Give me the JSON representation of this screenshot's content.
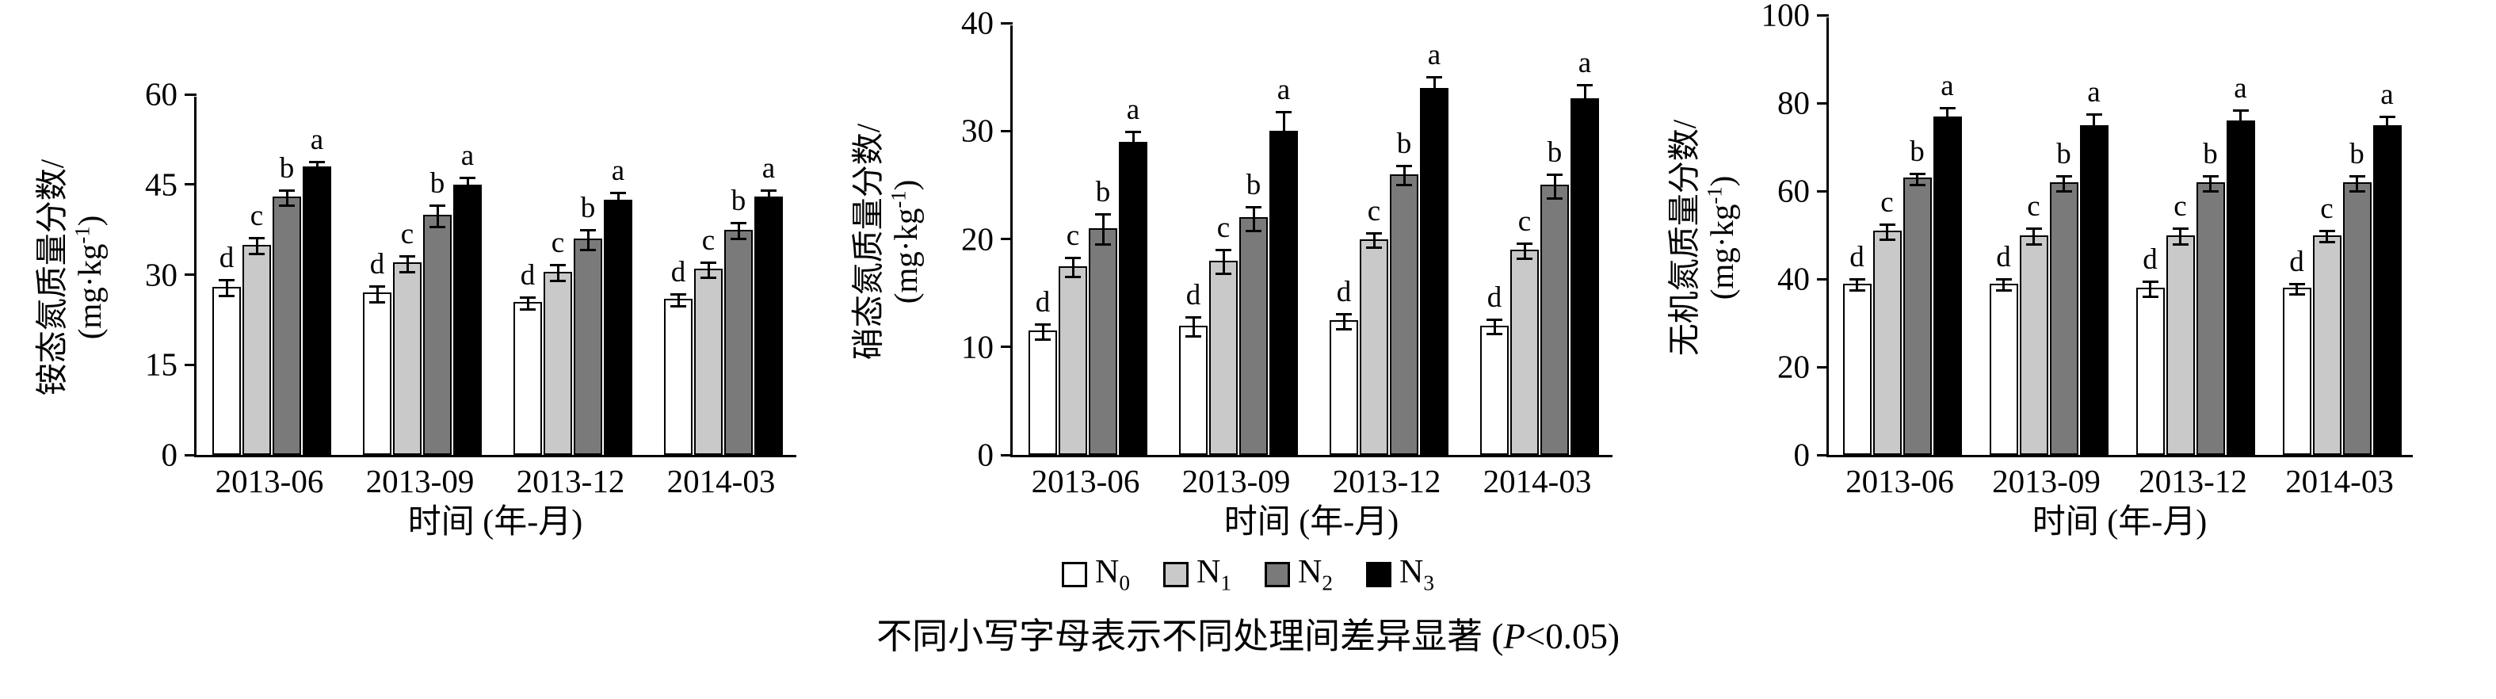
{
  "footnote": {
    "pre": "不同小写字母表示不同处理间差异显著 (",
    "italic": "P",
    "post": "<0.05)"
  },
  "legend": {
    "position": "bottom",
    "items": [
      {
        "label": "N0",
        "label_base": "N",
        "label_sub": "0",
        "color": "#ffffff"
      },
      {
        "label": "N1",
        "label_base": "N",
        "label_sub": "1",
        "color": "#c9c9c9"
      },
      {
        "label": "N2",
        "label_base": "N",
        "label_sub": "2",
        "color": "#7a7a7a"
      },
      {
        "label": "N3",
        "label_base": "N",
        "label_sub": "3",
        "color": "#000000"
      }
    ]
  },
  "chart_data": [
    {
      "type": "bar",
      "title": "",
      "ylabel": "铵态氮质量分数/(mg·kg⁻¹)",
      "ylabel_line1": "铵态氮质量分数/",
      "ylabel_unit_pre": "(mg·kg",
      "ylabel_unit_sup": "-1",
      "ylabel_unit_post": ")",
      "xlabel": "时间 (年-月)",
      "categories": [
        "2013-06",
        "2013-09",
        "2013-12",
        "2014-03"
      ],
      "ylim": [
        0,
        60
      ],
      "yticks": [
        0,
        15,
        30,
        45,
        60
      ],
      "grid": false,
      "series": [
        {
          "name": "N0",
          "values": [
            28,
            27,
            25.5,
            26
          ],
          "errors": [
            1.5,
            1.5,
            1.2,
            1.2
          ],
          "letters": [
            "d",
            "d",
            "d",
            "d"
          ]
        },
        {
          "name": "N1",
          "values": [
            35,
            32,
            30.5,
            31
          ],
          "errors": [
            1.5,
            1.5,
            1.5,
            1.5
          ],
          "letters": [
            "c",
            "c",
            "c",
            "c"
          ]
        },
        {
          "name": "N2",
          "values": [
            43,
            40,
            36,
            37.5
          ],
          "errors": [
            1.5,
            2,
            1.8,
            1.5
          ],
          "letters": [
            "b",
            "b",
            "b",
            "b"
          ]
        },
        {
          "name": "N3",
          "values": [
            48,
            45,
            42.5,
            43
          ],
          "errors": [
            1.2,
            1.5,
            1.5,
            1.5
          ],
          "letters": [
            "a",
            "a",
            "a",
            "a"
          ]
        }
      ]
    },
    {
      "type": "bar",
      "title": "",
      "ylabel": "硝态氮质量分数/(mg·kg⁻¹)",
      "ylabel_line1": "硝态氮质量分数/",
      "ylabel_unit_pre": "(mg·kg",
      "ylabel_unit_sup": "-1",
      "ylabel_unit_post": ")",
      "xlabel": "时间 (年-月)",
      "categories": [
        "2013-06",
        "2013-09",
        "2013-12",
        "2014-03"
      ],
      "ylim": [
        0,
        40
      ],
      "yticks": [
        0,
        10,
        20,
        30,
        40
      ],
      "grid": false,
      "series": [
        {
          "name": "N0",
          "values": [
            11.5,
            12,
            12.5,
            12
          ],
          "errors": [
            0.8,
            1,
            0.8,
            0.8
          ],
          "letters": [
            "d",
            "d",
            "d",
            "d"
          ]
        },
        {
          "name": "N1",
          "values": [
            17.5,
            18,
            20,
            19
          ],
          "errors": [
            1,
            1.2,
            0.8,
            0.8
          ],
          "letters": [
            "c",
            "c",
            "c",
            "c"
          ]
        },
        {
          "name": "N2",
          "values": [
            21,
            22,
            26,
            25
          ],
          "errors": [
            1.5,
            1.2,
            1,
            1.2
          ],
          "letters": [
            "b",
            "b",
            "b",
            "b"
          ]
        },
        {
          "name": "N3",
          "values": [
            29,
            30,
            34,
            33
          ],
          "errors": [
            1.2,
            2,
            1.2,
            1.5
          ],
          "letters": [
            "a",
            "a",
            "a",
            "a"
          ]
        }
      ]
    },
    {
      "type": "bar",
      "title": "",
      "ylabel": "无机氮质量分数/(mg·kg⁻¹)",
      "ylabel_line1": "无机氮质量分数/",
      "ylabel_unit_pre": "(mg·kg",
      "ylabel_unit_sup": "-1",
      "ylabel_unit_post": ")",
      "xlabel": "时间 (年-月)",
      "categories": [
        "2013-06",
        "2013-09",
        "2013-12",
        "2014-03"
      ],
      "ylim": [
        0,
        100
      ],
      "yticks": [
        0,
        20,
        40,
        60,
        80,
        100
      ],
      "grid": false,
      "series": [
        {
          "name": "N0",
          "values": [
            39,
            39,
            38,
            38
          ],
          "errors": [
            1.5,
            1.5,
            2,
            1.5
          ],
          "letters": [
            "d",
            "d",
            "d",
            "d"
          ]
        },
        {
          "name": "N1",
          "values": [
            51,
            50,
            50,
            50
          ],
          "errors": [
            2,
            2,
            2,
            1.5
          ],
          "letters": [
            "c",
            "c",
            "c",
            "c"
          ]
        },
        {
          "name": "N2",
          "values": [
            63,
            62,
            62,
            62
          ],
          "errors": [
            1.5,
            2,
            2,
            2
          ],
          "letters": [
            "b",
            "b",
            "b",
            "b"
          ]
        },
        {
          "name": "N3",
          "values": [
            77,
            75,
            76,
            75
          ],
          "errors": [
            2.5,
            3,
            3,
            2.5
          ],
          "letters": [
            "a",
            "a",
            "a",
            "a"
          ]
        }
      ]
    }
  ]
}
